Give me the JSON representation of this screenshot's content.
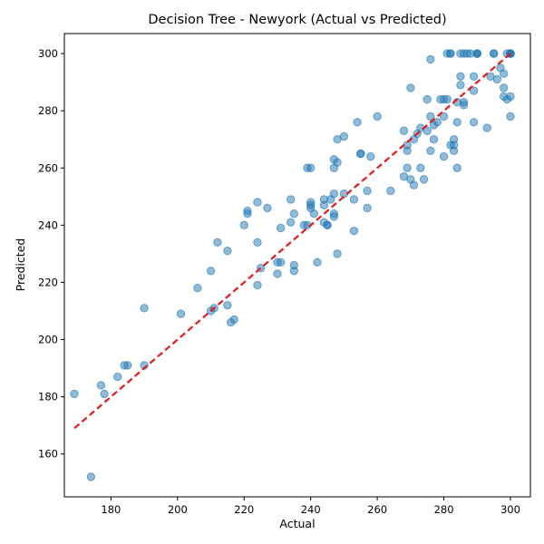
{
  "chart_data": {
    "type": "scatter",
    "title": "Decision Tree - Newyork (Actual vs Predicted)",
    "xlabel": "Actual",
    "ylabel": "Predicted",
    "xlim": [
      166,
      306
    ],
    "ylim": [
      145,
      307
    ],
    "xticks": [
      180,
      200,
      220,
      240,
      260,
      280,
      300
    ],
    "yticks": [
      160,
      180,
      200,
      220,
      240,
      260,
      280,
      300
    ],
    "grid": false,
    "point_color": "#1f77b4",
    "line_color": "#e41a1c",
    "reference_line": {
      "from": [
        169,
        169
      ],
      "to": [
        300,
        300
      ],
      "style": "dashed"
    },
    "series": [
      {
        "x": [
          169,
          174,
          177,
          178,
          182,
          184,
          185,
          190,
          190,
          201,
          206,
          210,
          210,
          211,
          212,
          215,
          215,
          216,
          217,
          220,
          221,
          221,
          224,
          224,
          224,
          225,
          227,
          230,
          230,
          231,
          231,
          234,
          234,
          235,
          235,
          235,
          238,
          239,
          239,
          240,
          240,
          240,
          240,
          241,
          242,
          244,
          244,
          244,
          245,
          245,
          246,
          247,
          247,
          247,
          247,
          247,
          248,
          248,
          248,
          250,
          250,
          253,
          253,
          254,
          255,
          255,
          257,
          257,
          258,
          260,
          264,
          268,
          268,
          269,
          269,
          269,
          270,
          270,
          271,
          271,
          272,
          273,
          273,
          274,
          275,
          275,
          276,
          276,
          276,
          277,
          277,
          278,
          279,
          280,
          280,
          280,
          281,
          281,
          282,
          282,
          282,
          283,
          283,
          283,
          284,
          284,
          284,
          285,
          285,
          285,
          286,
          286,
          286,
          287,
          288,
          289,
          289,
          289,
          290,
          290,
          290,
          293,
          294,
          295,
          295,
          296,
          297,
          298,
          298,
          298,
          299,
          299,
          300,
          300,
          300,
          300,
          300,
          300
        ],
        "y": [
          181,
          152,
          184,
          181,
          187,
          191,
          191,
          191,
          211,
          209,
          218,
          224,
          210,
          211,
          234,
          212,
          231,
          206,
          207,
          240,
          244,
          245,
          234,
          248,
          219,
          225,
          246,
          223,
          227,
          239,
          227,
          241,
          249,
          244,
          224,
          226,
          240,
          260,
          240,
          246,
          248,
          247,
          260,
          244,
          227,
          249,
          247,
          241,
          240,
          240,
          249,
          251,
          244,
          243,
          260,
          263,
          262,
          230,
          270,
          271,
          251,
          249,
          238,
          276,
          265,
          265,
          252,
          246,
          264,
          278,
          252,
          257,
          273,
          266,
          268,
          260,
          256,
          288,
          270,
          254,
          272,
          274,
          260,
          256,
          273,
          284,
          278,
          298,
          266,
          275,
          270,
          276,
          284,
          278,
          264,
          284,
          284,
          300,
          300,
          300,
          268,
          268,
          266,
          270,
          283,
          260,
          276,
          292,
          300,
          289,
          282,
          283,
          300,
          300,
          300,
          276,
          292,
          287,
          300,
          300,
          300,
          274,
          292,
          300,
          300,
          291,
          295,
          293,
          288,
          285,
          300,
          284,
          300,
          300,
          300,
          300,
          285,
          278
        ]
      }
    ]
  }
}
